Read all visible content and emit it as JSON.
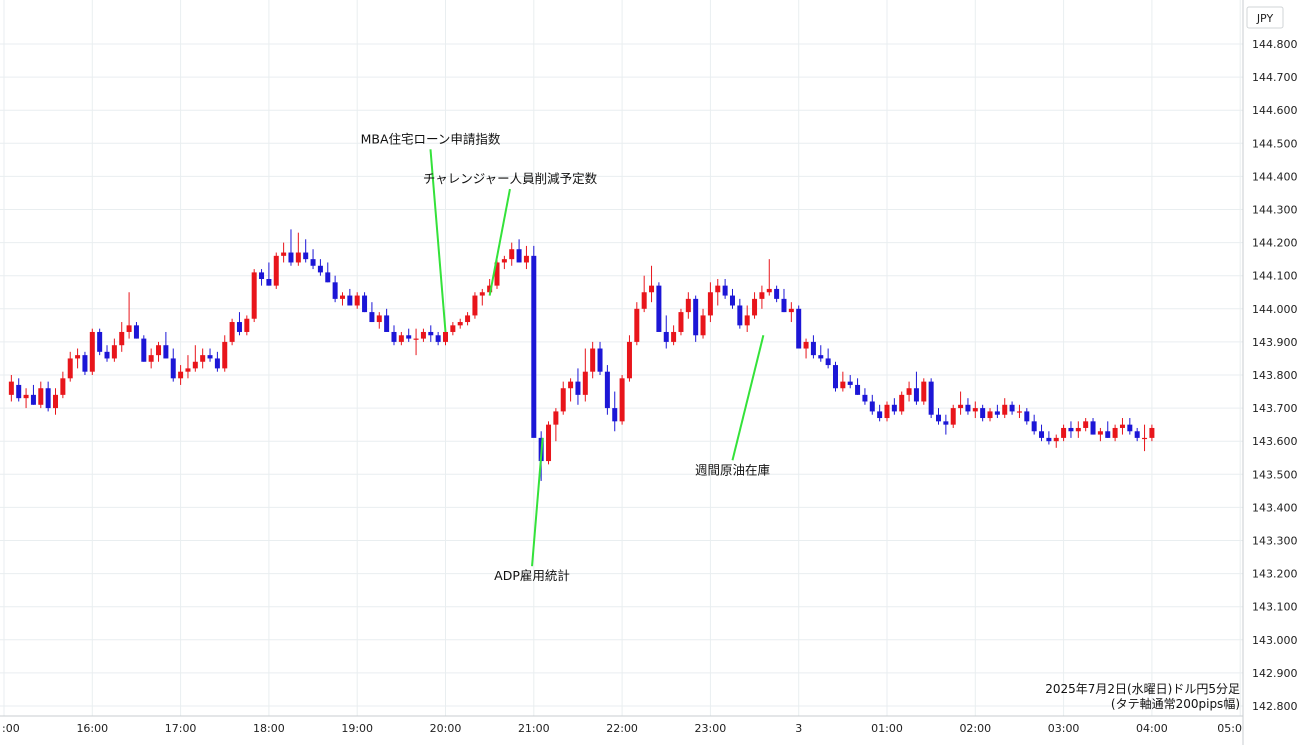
{
  "chart_data": {
    "type": "candlestick",
    "currency_label": "JPY",
    "caption": [
      "2025年7月2日(水曜日)ドル円5分足",
      "(タテ軸通常200pips幅)"
    ],
    "ylim": [
      142.77,
      144.87
    ],
    "x_range_hours": [
      15.02,
      29.0
    ],
    "y_ticks": [
      "144.800",
      "144.700",
      "144.600",
      "144.500",
      "144.400",
      "144.300",
      "144.200",
      "144.100",
      "144.000",
      "143.900",
      "143.800",
      "143.700",
      "143.600",
      "143.500",
      "143.400",
      "143.300",
      "143.200",
      "143.100",
      "143.000",
      "142.900",
      "142.800"
    ],
    "x_ticks": [
      {
        "t": 15,
        "label": ":00"
      },
      {
        "t": 16,
        "label": "16:00"
      },
      {
        "t": 17,
        "label": "17:00"
      },
      {
        "t": 18,
        "label": "18:00"
      },
      {
        "t": 19,
        "label": "19:00"
      },
      {
        "t": 20,
        "label": "20:00"
      },
      {
        "t": 21,
        "label": "21:00"
      },
      {
        "t": 22,
        "label": "22:00"
      },
      {
        "t": 23,
        "label": "23:00"
      },
      {
        "t": 24,
        "label": "3"
      },
      {
        "t": 25,
        "label": "01:00"
      },
      {
        "t": 26,
        "label": "02:00"
      },
      {
        "t": 27,
        "label": "03:00"
      },
      {
        "t": 28,
        "label": "04:00"
      },
      {
        "t": 29,
        "label": "05:0"
      }
    ],
    "start_time": "15:05",
    "interval_minutes": 5,
    "candles_ohlc": [
      [
        143.74,
        143.8,
        143.72,
        143.78
      ],
      [
        143.77,
        143.79,
        143.72,
        143.73
      ],
      [
        143.73,
        143.76,
        143.7,
        143.74
      ],
      [
        143.74,
        143.77,
        143.71,
        143.71
      ],
      [
        143.71,
        143.78,
        143.7,
        143.76
      ],
      [
        143.76,
        143.78,
        143.69,
        143.7
      ],
      [
        143.7,
        143.76,
        143.68,
        143.74
      ],
      [
        143.74,
        143.81,
        143.73,
        143.79
      ],
      [
        143.79,
        143.87,
        143.78,
        143.85
      ],
      [
        143.85,
        143.88,
        143.82,
        143.86
      ],
      [
        143.86,
        143.87,
        143.8,
        143.81
      ],
      [
        143.81,
        143.94,
        143.8,
        143.93
      ],
      [
        143.93,
        143.94,
        143.86,
        143.87
      ],
      [
        143.87,
        143.89,
        143.84,
        143.85
      ],
      [
        143.85,
        143.91,
        143.84,
        143.89
      ],
      [
        143.89,
        143.96,
        143.87,
        143.93
      ],
      [
        143.93,
        144.05,
        143.91,
        143.95
      ],
      [
        143.95,
        143.96,
        143.91,
        143.91
      ],
      [
        143.91,
        143.92,
        143.84,
        143.84
      ],
      [
        143.84,
        143.88,
        143.82,
        143.86
      ],
      [
        143.86,
        143.9,
        143.84,
        143.89
      ],
      [
        143.89,
        143.93,
        143.85,
        143.85
      ],
      [
        143.85,
        143.88,
        143.78,
        143.79
      ],
      [
        143.79,
        143.83,
        143.77,
        143.81
      ],
      [
        143.81,
        143.86,
        143.79,
        143.82
      ],
      [
        143.82,
        143.89,
        143.81,
        143.84
      ],
      [
        143.84,
        143.88,
        143.82,
        143.86
      ],
      [
        143.86,
        143.88,
        143.84,
        143.85
      ],
      [
        143.85,
        143.87,
        143.81,
        143.82
      ],
      [
        143.82,
        143.92,
        143.81,
        143.9
      ],
      [
        143.9,
        143.97,
        143.89,
        143.96
      ],
      [
        143.96,
        143.99,
        143.92,
        143.93
      ],
      [
        143.93,
        143.98,
        143.92,
        143.97
      ],
      [
        143.97,
        144.12,
        143.96,
        144.11
      ],
      [
        144.11,
        144.12,
        144.07,
        144.09
      ],
      [
        144.09,
        144.14,
        144.07,
        144.07
      ],
      [
        144.07,
        144.17,
        144.06,
        144.16
      ],
      [
        144.16,
        144.2,
        144.14,
        144.17
      ],
      [
        144.17,
        144.24,
        144.13,
        144.14
      ],
      [
        144.14,
        144.23,
        144.13,
        144.17
      ],
      [
        144.17,
        144.21,
        144.14,
        144.15
      ],
      [
        144.15,
        144.18,
        144.12,
        144.13
      ],
      [
        144.13,
        144.15,
        144.1,
        144.11
      ],
      [
        144.11,
        144.14,
        144.08,
        144.08
      ],
      [
        144.08,
        144.1,
        144.02,
        144.03
      ],
      [
        144.03,
        144.05,
        144.01,
        144.04
      ],
      [
        144.04,
        144.06,
        144.01,
        144.01
      ],
      [
        144.01,
        144.05,
        144.0,
        144.04
      ],
      [
        144.04,
        144.05,
        143.99,
        143.99
      ],
      [
        143.99,
        144.02,
        143.96,
        143.96
      ],
      [
        143.96,
        143.99,
        143.94,
        143.98
      ],
      [
        143.98,
        144.0,
        143.93,
        143.93
      ],
      [
        143.93,
        143.95,
        143.89,
        143.9
      ],
      [
        143.9,
        143.93,
        143.89,
        143.92
      ],
      [
        143.92,
        143.94,
        143.9,
        143.91
      ],
      [
        143.91,
        143.94,
        143.86,
        143.91
      ],
      [
        143.91,
        143.94,
        143.9,
        143.93
      ],
      [
        143.93,
        143.95,
        143.9,
        143.92
      ],
      [
        143.92,
        143.93,
        143.89,
        143.9
      ],
      [
        143.9,
        143.94,
        143.89,
        143.93
      ],
      [
        143.93,
        143.96,
        143.92,
        143.95
      ],
      [
        143.95,
        143.97,
        143.94,
        143.96
      ],
      [
        143.96,
        143.99,
        143.95,
        143.98
      ],
      [
        143.98,
        144.05,
        143.97,
        144.04
      ],
      [
        144.04,
        144.06,
        144.01,
        144.05
      ],
      [
        144.05,
        144.09,
        144.04,
        144.07
      ],
      [
        144.07,
        144.15,
        144.06,
        144.14
      ],
      [
        144.14,
        144.16,
        144.12,
        144.15
      ],
      [
        144.15,
        144.2,
        144.13,
        144.18
      ],
      [
        144.18,
        144.21,
        144.14,
        144.14
      ],
      [
        144.14,
        144.19,
        144.12,
        144.16
      ],
      [
        144.16,
        144.19,
        143.62,
        143.61
      ],
      [
        143.61,
        143.63,
        143.48,
        143.54
      ],
      [
        143.54,
        143.66,
        143.53,
        143.65
      ],
      [
        143.65,
        143.7,
        143.6,
        143.69
      ],
      [
        143.69,
        143.78,
        143.68,
        143.76
      ],
      [
        143.76,
        143.79,
        143.72,
        143.78
      ],
      [
        143.78,
        143.82,
        143.71,
        143.74
      ],
      [
        143.74,
        143.88,
        143.72,
        143.81
      ],
      [
        143.81,
        143.9,
        143.79,
        143.88
      ],
      [
        143.88,
        143.9,
        143.8,
        143.81
      ],
      [
        143.81,
        143.83,
        143.68,
        143.7
      ],
      [
        143.7,
        143.75,
        143.63,
        143.66
      ],
      [
        143.66,
        143.8,
        143.65,
        143.79
      ],
      [
        143.79,
        143.92,
        143.78,
        143.9
      ],
      [
        143.9,
        144.02,
        143.89,
        144.0
      ],
      [
        144.0,
        144.1,
        143.99,
        144.05
      ],
      [
        144.05,
        144.13,
        144.02,
        144.07
      ],
      [
        144.07,
        144.08,
        143.98,
        143.93
      ],
      [
        143.93,
        143.98,
        143.88,
        143.9
      ],
      [
        143.9,
        143.95,
        143.89,
        143.93
      ],
      [
        143.93,
        144.0,
        143.92,
        143.99
      ],
      [
        143.99,
        144.05,
        143.97,
        144.03
      ],
      [
        144.03,
        144.04,
        143.9,
        143.92
      ],
      [
        143.92,
        144.0,
        143.91,
        143.98
      ],
      [
        143.98,
        144.08,
        143.96,
        144.05
      ],
      [
        144.05,
        144.09,
        144.01,
        144.07
      ],
      [
        144.07,
        144.09,
        144.03,
        144.04
      ],
      [
        144.04,
        144.06,
        144.0,
        144.01
      ],
      [
        144.01,
        144.03,
        143.94,
        143.95
      ],
      [
        143.95,
        144.01,
        143.93,
        143.98
      ],
      [
        143.98,
        144.05,
        143.97,
        144.03
      ],
      [
        144.03,
        144.07,
        144.0,
        144.05
      ],
      [
        144.05,
        144.15,
        144.04,
        144.06
      ],
      [
        144.06,
        144.07,
        144.02,
        144.03
      ],
      [
        144.03,
        144.06,
        143.99,
        143.99
      ],
      [
        143.99,
        144.02,
        143.96,
        144.0
      ],
      [
        144.0,
        144.01,
        143.89,
        143.88
      ],
      [
        143.88,
        143.91,
        143.85,
        143.9
      ],
      [
        143.9,
        143.92,
        143.85,
        143.86
      ],
      [
        143.86,
        143.89,
        143.84,
        143.85
      ],
      [
        143.85,
        143.88,
        143.82,
        143.83
      ],
      [
        143.83,
        143.84,
        143.75,
        143.76
      ],
      [
        143.76,
        143.81,
        143.75,
        143.78
      ],
      [
        143.78,
        143.8,
        143.76,
        143.77
      ],
      [
        143.77,
        143.79,
        143.74,
        143.74
      ],
      [
        143.74,
        143.76,
        143.71,
        143.72
      ],
      [
        143.72,
        143.74,
        143.68,
        143.69
      ],
      [
        143.69,
        143.71,
        143.66,
        143.67
      ],
      [
        143.67,
        143.72,
        143.66,
        143.71
      ],
      [
        143.71,
        143.73,
        143.68,
        143.69
      ],
      [
        143.69,
        143.75,
        143.68,
        143.74
      ],
      [
        143.74,
        143.78,
        143.72,
        143.76
      ],
      [
        143.76,
        143.81,
        143.71,
        143.72
      ],
      [
        143.72,
        143.79,
        143.71,
        143.78
      ],
      [
        143.78,
        143.79,
        143.67,
        143.68
      ],
      [
        143.68,
        143.7,
        143.65,
        143.66
      ],
      [
        143.66,
        143.68,
        143.62,
        143.65
      ],
      [
        143.65,
        143.71,
        143.64,
        143.7
      ],
      [
        143.7,
        143.75,
        143.68,
        143.71
      ],
      [
        143.71,
        143.73,
        143.68,
        143.69
      ],
      [
        143.69,
        143.72,
        143.67,
        143.7
      ],
      [
        143.7,
        143.71,
        143.66,
        143.67
      ],
      [
        143.67,
        143.7,
        143.66,
        143.69
      ],
      [
        143.69,
        143.71,
        143.67,
        143.68
      ],
      [
        143.68,
        143.73,
        143.67,
        143.71
      ],
      [
        143.71,
        143.72,
        143.68,
        143.69
      ],
      [
        143.69,
        143.71,
        143.67,
        143.69
      ],
      [
        143.69,
        143.7,
        143.65,
        143.66
      ],
      [
        143.66,
        143.68,
        143.62,
        143.63
      ],
      [
        143.63,
        143.65,
        143.6,
        143.61
      ],
      [
        143.61,
        143.63,
        143.59,
        143.6
      ],
      [
        143.6,
        143.62,
        143.58,
        143.61
      ],
      [
        143.61,
        143.65,
        143.6,
        143.64
      ],
      [
        143.64,
        143.66,
        143.61,
        143.63
      ],
      [
        143.63,
        143.66,
        143.61,
        143.64
      ],
      [
        143.64,
        143.67,
        143.63,
        143.66
      ],
      [
        143.66,
        143.67,
        143.62,
        143.62
      ],
      [
        143.62,
        143.64,
        143.6,
        143.63
      ],
      [
        143.63,
        143.66,
        143.61,
        143.61
      ],
      [
        143.61,
        143.65,
        143.6,
        143.64
      ],
      [
        143.64,
        143.67,
        143.62,
        143.65
      ],
      [
        143.65,
        143.67,
        143.62,
        143.63
      ],
      [
        143.63,
        143.64,
        143.6,
        143.61
      ],
      [
        143.61,
        143.65,
        143.57,
        143.61
      ],
      [
        143.61,
        143.65,
        143.6,
        143.64
      ]
    ],
    "annotations": [
      {
        "text": "MBA住宅ローン申請指数",
        "label_t": 19.83,
        "label_v": 144.5,
        "point_t": 20.0,
        "point_v": 143.93
      },
      {
        "text": "チャレンジャー人員削減予定数",
        "label_t": 20.73,
        "label_v": 144.38,
        "point_t": 20.5,
        "point_v": 144.04
      },
      {
        "text": "ADP雇用統計",
        "label_t": 20.98,
        "label_v": 143.18,
        "point_t": 21.1,
        "point_v": 143.61
      },
      {
        "text": "週間原油在庫",
        "label_t": 23.25,
        "label_v": 143.5,
        "point_t": 23.6,
        "point_v": 143.92
      }
    ],
    "colors": {
      "up": "#e8151b",
      "down": "#1c16d6",
      "grid": "#e9eef0",
      "annotation_line": "#34e23a"
    },
    "grid": true
  }
}
